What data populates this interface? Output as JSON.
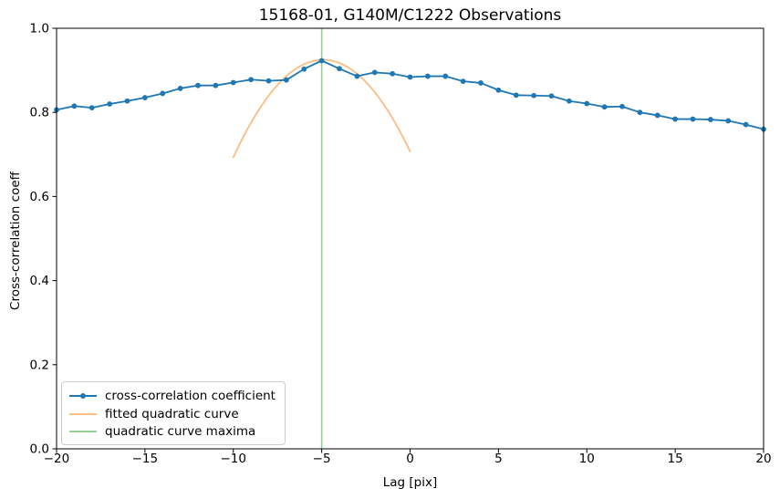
{
  "chart_data": {
    "type": "line",
    "title": "15168-01, G140M/C1222 Observations",
    "xlabel": "Lag [pix]",
    "ylabel": "Cross-correlation coeff",
    "xlim": [
      -20,
      20
    ],
    "ylim": [
      0.0,
      1.0
    ],
    "xticks": [
      -20,
      -15,
      -10,
      -5,
      0,
      5,
      10,
      15,
      20
    ],
    "xtick_labels": [
      "−20",
      "−15",
      "−10",
      "−5",
      "0",
      "5",
      "10",
      "15",
      "20"
    ],
    "yticks": [
      0.0,
      0.2,
      0.4,
      0.6,
      0.8,
      1.0
    ],
    "ytick_labels": [
      "0.0",
      "0.2",
      "0.4",
      "0.6",
      "0.8",
      "1.0"
    ],
    "grid": false,
    "legend_position": "lower left",
    "legend": [
      "cross-correlation coefficient",
      "fitted quadratic curve",
      "quadratic curve maxima"
    ],
    "colors": {
      "data_line": "#1f77b4",
      "fitted_curve": "#fcbd82",
      "maxima_line": "#95cf95",
      "axes": "#000000"
    },
    "series": [
      {
        "name": "cross-correlation coefficient",
        "type": "line_markers",
        "color": "#1f77b4",
        "x": [
          -20,
          -19,
          -18,
          -17,
          -16,
          -15,
          -14,
          -13,
          -12,
          -11,
          -10,
          -9,
          -8,
          -7,
          -6,
          -5,
          -4,
          -3,
          -2,
          -1,
          0,
          1,
          2,
          3,
          4,
          5,
          6,
          7,
          8,
          9,
          10,
          11,
          12,
          13,
          14,
          15,
          16,
          17,
          18,
          19,
          20
        ],
        "y": [
          0.806,
          0.815,
          0.811,
          0.82,
          0.827,
          0.835,
          0.845,
          0.857,
          0.864,
          0.864,
          0.871,
          0.878,
          0.875,
          0.877,
          0.903,
          0.923,
          0.904,
          0.886,
          0.895,
          0.892,
          0.884,
          0.886,
          0.886,
          0.874,
          0.87,
          0.853,
          0.841,
          0.84,
          0.839,
          0.827,
          0.821,
          0.813,
          0.814,
          0.8,
          0.793,
          0.784,
          0.784,
          0.783,
          0.78,
          0.771,
          0.76
        ]
      },
      {
        "name": "fitted quadratic curve",
        "type": "quadratic",
        "color": "#fcbd82",
        "anchor_points": [
          [
            -10,
            0.693
          ],
          [
            -5,
            0.925
          ],
          [
            0,
            0.707
          ]
        ]
      },
      {
        "name": "quadratic curve maxima",
        "type": "vline",
        "color": "#95cf95",
        "x": -5
      }
    ]
  }
}
